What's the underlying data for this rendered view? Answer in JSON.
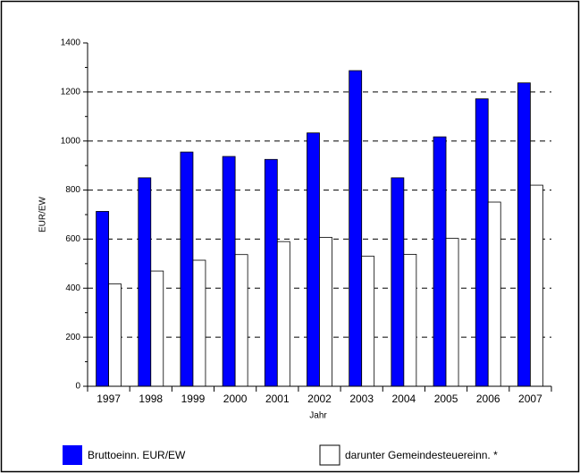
{
  "chart_data": {
    "type": "bar",
    "x_label": "Jahr",
    "y_label": "EUR/EW",
    "categories": [
      "1997",
      "1998",
      "1999",
      "2000",
      "2001",
      "2002",
      "2003",
      "2004",
      "2005",
      "2006",
      "2007"
    ],
    "series": [
      {
        "name": "Bruttoeinn. EUR/EW",
        "color": "#0000ff",
        "values": [
          713,
          850,
          955,
          937,
          925,
          1033,
          1287,
          850,
          1017,
          1172,
          1237
        ]
      },
      {
        "name": "darunter Gemeindesteuereinn. *",
        "color": "#ffffff",
        "values": [
          417,
          470,
          514,
          537,
          590,
          607,
          530,
          538,
          603,
          751,
          820
        ]
      }
    ],
    "ylim": [
      0,
      1400
    ],
    "yticks": [
      0,
      200,
      400,
      600,
      800,
      1000,
      1200,
      1400
    ],
    "grid": true
  }
}
